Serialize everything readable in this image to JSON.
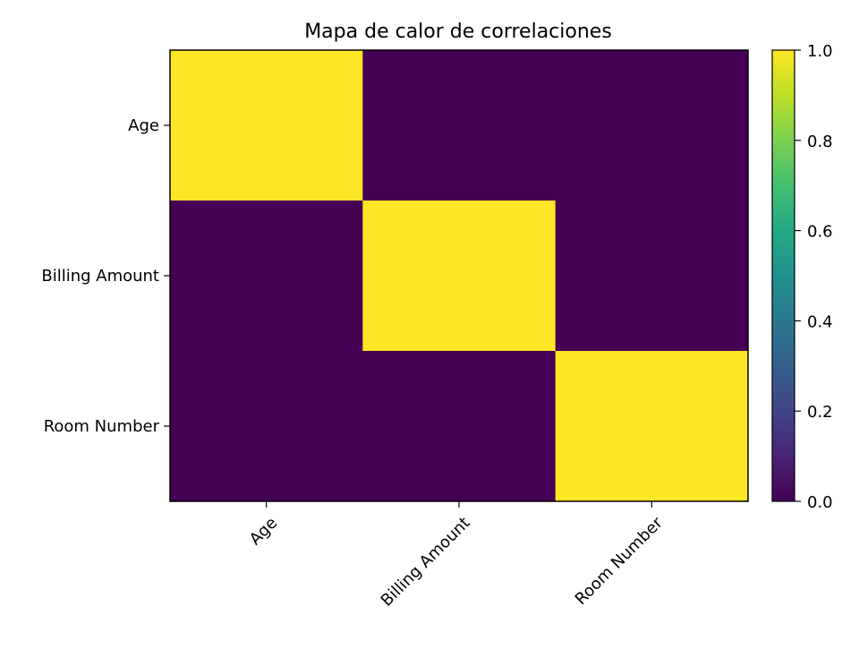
{
  "chart_data": {
    "type": "heatmap",
    "title": "Mapa de calor de correlaciones",
    "xlabel": "",
    "ylabel": "",
    "x_labels": [
      "Age",
      "Billing Amount",
      "Room Number"
    ],
    "y_labels": [
      "Age",
      "Billing Amount",
      "Room Number"
    ],
    "values": [
      [
        1.0,
        0.0,
        0.0
      ],
      [
        0.0,
        1.0,
        0.0
      ],
      [
        0.0,
        0.0,
        1.0
      ]
    ],
    "colorbar": {
      "colormap": "viridis",
      "range": [
        0.0,
        1.0
      ],
      "ticks": [
        0.0,
        0.2,
        0.4,
        0.6,
        0.8,
        1.0
      ],
      "tick_labels": [
        "0.0",
        "0.2",
        "0.4",
        "0.6",
        "0.8",
        "1.0"
      ]
    },
    "colors": {
      "low": "#440154",
      "high": "#fde725"
    },
    "grid": false
  }
}
